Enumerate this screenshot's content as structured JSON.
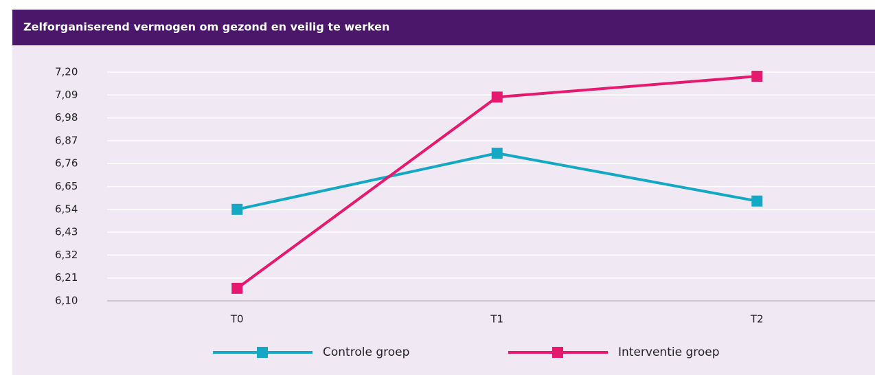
{
  "chart_data": {
    "type": "line",
    "title": "Zelforganiserend vermogen om gezond en veilig te werken",
    "categories": [
      "T0",
      "T1",
      "T2"
    ],
    "series": [
      {
        "name": "Controle groep",
        "color": "#14a8c4",
        "values": [
          6.54,
          6.81,
          6.58
        ]
      },
      {
        "name": "Interventie groep",
        "color": "#e5196e",
        "values": [
          6.16,
          7.08,
          7.18
        ]
      }
    ],
    "ylim": [
      6.1,
      7.2
    ],
    "yticks": [
      {
        "value": 6.1,
        "label": "6,10"
      },
      {
        "value": 6.21,
        "label": "6,21"
      },
      {
        "value": 6.32,
        "label": "6,32"
      },
      {
        "value": 6.43,
        "label": "6,43"
      },
      {
        "value": 6.54,
        "label": "6,54"
      },
      {
        "value": 6.65,
        "label": "6,65"
      },
      {
        "value": 6.76,
        "label": "6,76"
      },
      {
        "value": 6.87,
        "label": "6,87"
      },
      {
        "value": 6.98,
        "label": "6,98"
      },
      {
        "value": 7.09,
        "label": "7,09"
      },
      {
        "value": 7.2,
        "label": "7,20"
      }
    ],
    "grid": true,
    "legend": "bottom"
  }
}
